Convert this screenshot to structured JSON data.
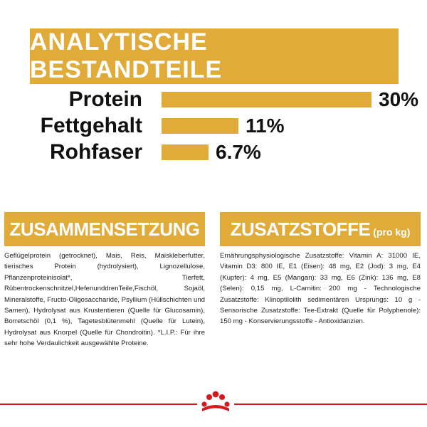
{
  "header": {
    "title": "ANALYTISCHE BESTANDTEILE"
  },
  "analysis": {
    "max_value": 30,
    "rows": [
      {
        "label": "Protein",
        "value_text": "30%",
        "value": 30
      },
      {
        "label": "Fettgehalt",
        "value_text": "11%",
        "value": 11
      },
      {
        "label": "Rohfaser",
        "value_text": "6.7%",
        "value": 6.7
      }
    ]
  },
  "composition": {
    "title": "ZUSAMMENSETZUNG",
    "text": "Geflügelprotein (getrocknet), Mais, Reis, Maiskleberfutter, tierisches Protein (hydrolysiert), Lignozellulose, Pflanzenproteinisolat*, Tierfett, Rübentrockenschnitzel,HefenunddrenTeile,Fischöl, Sojaöl, Mineralstoffe, Fructo-Oligosaccharide, Psyllium (Hüllschichten und Samen), Hydrolysat aus Krustentieren (Quelle für Glucosamin), Borretschöl (0,1 %), Tagetesblütenmehl (Quelle für Lutein), Hydrolysat aus Knorpel (Quelle für Chondroitin). *L.I.P.: Für ihre sehr hohe Verdaulichkeit ausgewählte Proteine."
  },
  "additives": {
    "title": "ZUSATZSTOFFE",
    "title_suffix": "(pro kg)",
    "text": "Ernährungsphysiologische Zusatzstoffe: Vitamin A: 31000 IE, Vitamin D3: 800 IE, E1 (Eisen): 48 mg, E2 (Jod): 3 mg, E4 (Kupfer): 4 mg, E5 (Mangan): 33 mg, E6 (Zink): 136 mg, E8 (Selen): 0,15 mg, L-Carnitin: 200 mg - Technologische Zusatzstoffe: Klinoptilolith sedimentären Ursprungs: 10 g - Sensorische Zusatzstoffe: Tee-Extrakt (Quelle für Polyphenole): 150 mg - Konservierungsstoffe - Antioxidanzien."
  },
  "footer": {
    "logo": "royal-canin-crown-icon",
    "line_color": "#d41a1f"
  },
  "colors": {
    "accent": "#e0ab38",
    "text": "#111111"
  }
}
